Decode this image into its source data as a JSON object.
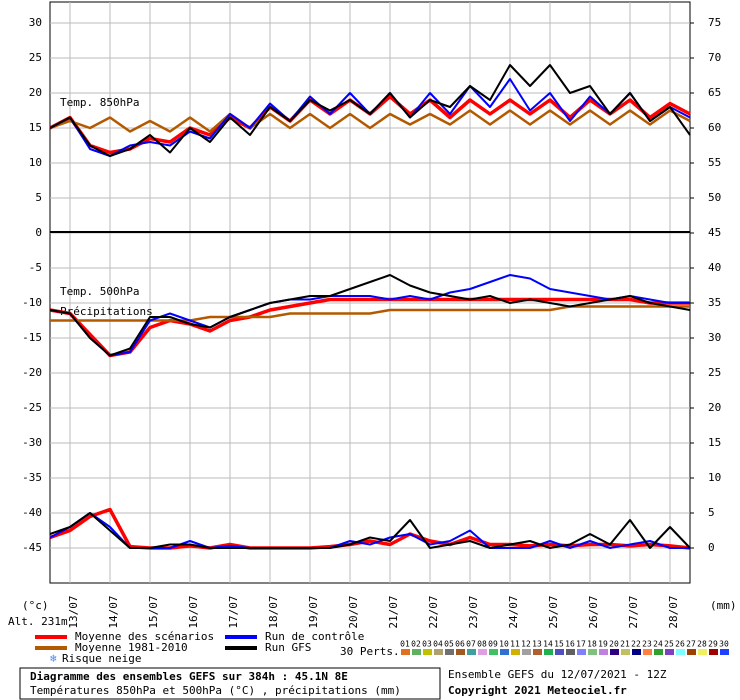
{
  "chart_data": {
    "type": "line",
    "title": "Diagramme des ensembles GEFS sur 384h : 45.1N 8E",
    "subtitle": "Températures 850hPa et 500hPa (°C) , précipitations (mm)",
    "run_info": "Ensemble GEFS du 12/07/2021 - 12Z",
    "copyright": "Copyright 2021 Meteociel.fr",
    "y_unit": "(°c)",
    "altitude": "Alt. 231m",
    "y2_unit": "(mm)",
    "panel_labels": [
      "Temp. 850hPa",
      "Temp. 500hPa",
      "Précipitations"
    ],
    "xlim": [
      0,
      16
    ],
    "xticks": [
      {
        "value": 0.5,
        "label": "13/07"
      },
      {
        "value": 1.5,
        "label": "14/07"
      },
      {
        "value": 2.5,
        "label": "15/07"
      },
      {
        "value": 3.5,
        "label": "16/07"
      },
      {
        "value": 4.5,
        "label": "17/07"
      },
      {
        "value": 5.5,
        "label": "18/07"
      },
      {
        "value": 6.5,
        "label": "19/07"
      },
      {
        "value": 7.5,
        "label": "20/07"
      },
      {
        "value": 8.5,
        "label": "21/07"
      },
      {
        "value": 9.5,
        "label": "22/07"
      },
      {
        "value": 10.5,
        "label": "23/07"
      },
      {
        "value": 11.5,
        "label": "24/07"
      },
      {
        "value": 12.5,
        "label": "25/07"
      },
      {
        "value": 13.5,
        "label": "26/07"
      },
      {
        "value": 14.5,
        "label": "27/07"
      },
      {
        "value": 15.5,
        "label": "28/07"
      }
    ],
    "ylim": [
      -50,
      33
    ],
    "yticks": [
      30,
      25,
      20,
      15,
      10,
      5,
      0,
      -5,
      -10,
      -15,
      -20,
      -25,
      -30,
      -35,
      -40,
      -45
    ],
    "y2lim": [
      -5,
      78
    ],
    "y2ticks": [
      75,
      70,
      65,
      60,
      55,
      50,
      45,
      40,
      35,
      30,
      25,
      20,
      15,
      10,
      5,
      0
    ],
    "grid": true,
    "x": [
      0,
      0.5,
      1,
      1.5,
      2,
      2.5,
      3,
      3.5,
      4,
      4.5,
      5,
      5.5,
      6,
      6.5,
      7,
      7.5,
      8,
      8.5,
      9,
      9.5,
      10,
      10.5,
      11,
      11.5,
      12,
      12.5,
      13,
      13.5,
      14,
      14.5,
      15,
      15.5,
      16
    ],
    "series": [
      {
        "name": "Moyenne des scénarios",
        "color": "#ff0000",
        "width": 3.5,
        "values_850": [
          15,
          16.5,
          12.5,
          11.5,
          12,
          13.5,
          13,
          15,
          14,
          16.5,
          15,
          18,
          16,
          19,
          17,
          19,
          17,
          19.5,
          17,
          19,
          16.5,
          19,
          17,
          19,
          17,
          19,
          16.5,
          19,
          17,
          19,
          16.5,
          18.5,
          17
        ],
        "values_500": [
          -11,
          -11.5,
          -14.5,
          -17.5,
          -17,
          -13.5,
          -12.5,
          -13,
          -14,
          -12.5,
          -12,
          -11,
          -10.5,
          -10,
          -9.5,
          -9.5,
          -9.5,
          -9.5,
          -9.5,
          -9.5,
          -9.5,
          -9.5,
          -9.5,
          -9.5,
          -9.5,
          -9.5,
          -9.5,
          -9.5,
          -9.5,
          -9.5,
          -10,
          -10,
          -10
        ],
        "precip": [
          1.5,
          2.5,
          4.5,
          5.5,
          0.2,
          0,
          0,
          0.3,
          0,
          0.5,
          0,
          0,
          0,
          0,
          0.2,
          0.5,
          1,
          0.5,
          2,
          1,
          0.5,
          1.5,
          0.5,
          0.5,
          0.3,
          0.5,
          0.3,
          0.5,
          0.5,
          0.3,
          0.5,
          0.3,
          0
        ]
      },
      {
        "name": "Moyenne 1981-2010",
        "color": "#b35a00",
        "width": 2.5,
        "values_850": [
          15,
          16,
          15,
          16.5,
          14.5,
          16,
          14.5,
          16.5,
          14.5,
          17,
          15,
          17,
          15,
          17,
          15,
          17,
          15,
          17,
          15.5,
          17,
          15.5,
          17.5,
          15.5,
          17.5,
          15.5,
          17.5,
          15.5,
          17.5,
          15.5,
          17.5,
          15.5,
          17.5,
          16
        ],
        "values_500": [
          -12.5,
          -12.5,
          -12.5,
          -12.5,
          -12.5,
          -12.5,
          -12.5,
          -12.5,
          -12,
          -12,
          -12,
          -12,
          -11.5,
          -11.5,
          -11.5,
          -11.5,
          -11.5,
          -11,
          -11,
          -11,
          -11,
          -11,
          -11,
          -11,
          -11,
          -11,
          -10.5,
          -10.5,
          -10.5,
          -10.5,
          -10.5,
          -10.5,
          -10.5
        ]
      },
      {
        "name": "Run de contrôle",
        "color": "#0000ff",
        "width": 2,
        "values_850": [
          15,
          16.5,
          12,
          11,
          12.5,
          13,
          12.5,
          14.5,
          13.5,
          17,
          15,
          18.5,
          16,
          19.5,
          17,
          20,
          17,
          20,
          16.5,
          20,
          17,
          21,
          18,
          22,
          17.5,
          20,
          16,
          19.5,
          17,
          20,
          16,
          18,
          16.5
        ],
        "values_500": [
          -11,
          -11.5,
          -15,
          -17.5,
          -17,
          -12.5,
          -11.5,
          -12.5,
          -13.5,
          -12,
          -11,
          -10,
          -9.5,
          -9.5,
          -9,
          -9,
          -9,
          -9.5,
          -9,
          -9.5,
          -8.5,
          -8,
          -7,
          -6,
          -6.5,
          -8,
          -8.5,
          -9,
          -9.5,
          -9,
          -9.5,
          -10,
          -10
        ],
        "precip": [
          1.5,
          3,
          5,
          3,
          0,
          0,
          0,
          1,
          0,
          0.3,
          0,
          0,
          0,
          0,
          0,
          1,
          0.5,
          1.5,
          2,
          0.5,
          1,
          2.5,
          0,
          0,
          0,
          1,
          0,
          1,
          0,
          0.5,
          1,
          0,
          0
        ]
      },
      {
        "name": "Run GFS",
        "color": "#000000",
        "width": 2,
        "values_850": [
          15,
          16.5,
          12.5,
          11,
          12,
          14,
          11.5,
          15,
          13,
          16.5,
          14,
          18,
          16,
          19,
          17.5,
          19,
          17,
          20,
          16.5,
          19,
          18,
          21,
          19,
          24,
          21,
          24,
          20,
          21,
          17,
          20,
          16,
          18,
          14
        ],
        "values_500": [
          -11,
          -11.5,
          -15,
          -17.5,
          -16.5,
          -12,
          -12,
          -13,
          -13.5,
          -12,
          -11,
          -10,
          -9.5,
          -9,
          -9,
          -8,
          -7,
          -6,
          -7.5,
          -8.5,
          -9,
          -9.5,
          -9,
          -10,
          -9.5,
          -10,
          -10.5,
          -10,
          -9.5,
          -9,
          -10,
          -10.5,
          -11
        ],
        "precip": [
          2,
          3,
          5,
          2.5,
          0,
          0,
          0.5,
          0.5,
          0,
          0,
          0,
          0,
          0,
          0,
          0,
          0.5,
          1.5,
          1,
          4,
          0,
          0.5,
          1,
          0,
          0.5,
          1,
          0,
          0.5,
          2,
          0.5,
          4,
          0,
          3,
          0
        ]
      }
    ],
    "snow_legend": "Risque neige",
    "perturbations": {
      "label": "30 Perts.",
      "ids": [
        "01",
        "02",
        "03",
        "04",
        "05",
        "06",
        "07",
        "08",
        "09",
        "10",
        "11",
        "12",
        "13",
        "14",
        "15",
        "16",
        "17",
        "18",
        "19",
        "20",
        "21",
        "22",
        "23",
        "24",
        "25",
        "26",
        "27",
        "28",
        "29",
        "30"
      ],
      "colors": [
        "#e07020",
        "#60b060",
        "#c0c000",
        "#b0a070",
        "#707070",
        "#a05a20",
        "#40a0a0",
        "#e0a0e0",
        "#40c060",
        "#3070d0",
        "#d0b000",
        "#a0a0a0",
        "#b06030",
        "#20b050",
        "#5050c0",
        "#606060",
        "#8080ff",
        "#80c080",
        "#c080e0",
        "#300080",
        "#c0c060",
        "#000080",
        "#ff8040",
        "#30a030",
        "#8040c0",
        "#80ffff",
        "#a04000",
        "#f0f060",
        "#a00000",
        "#2040ff"
      ]
    }
  }
}
